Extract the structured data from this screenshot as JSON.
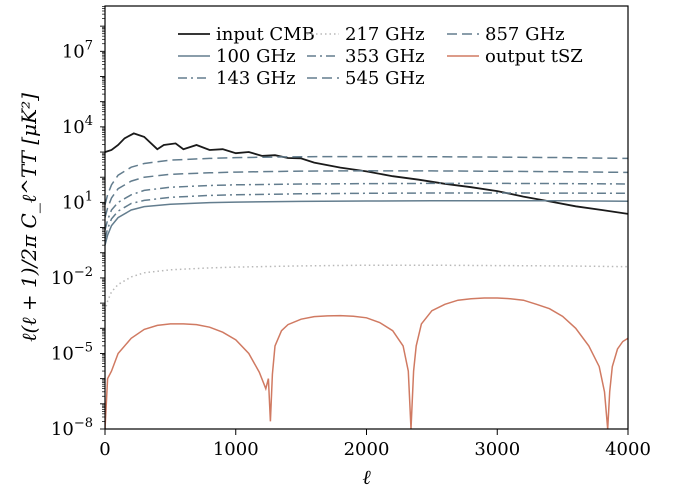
{
  "chart_data": {
    "type": "line",
    "xlabel": "ℓ",
    "ylabel": "ℓ(ℓ + 1)/2π C_ℓ^TT [μK²]",
    "xlim": [
      0,
      4000
    ],
    "ylim_log10": [
      -8,
      8.8
    ],
    "yscale": "log",
    "grid": false,
    "legend_position": "top-right",
    "x_ticks": [
      {
        "value": 0,
        "label": "0"
      },
      {
        "value": 1000,
        "label": "1000"
      },
      {
        "value": 2000,
        "label": "2000"
      },
      {
        "value": 3000,
        "label": "3000"
      },
      {
        "value": 4000,
        "label": "4000"
      }
    ],
    "y_ticks": [
      {
        "exp": -8,
        "base": "10",
        "sup": "−8"
      },
      {
        "exp": -5,
        "base": "10",
        "sup": "−5"
      },
      {
        "exp": -2,
        "base": "10",
        "sup": "−2"
      },
      {
        "exp": 1,
        "base": "10",
        "sup": "1"
      },
      {
        "exp": 4,
        "base": "10",
        "sup": "4"
      },
      {
        "exp": 7,
        "base": "10",
        "sup": "7"
      }
    ],
    "series": [
      {
        "name": "input CMB",
        "color": "#1a1a1a",
        "dash": "solid",
        "x": [
          2,
          50,
          100,
          150,
          220,
          300,
          400,
          450,
          540,
          600,
          700,
          800,
          900,
          1000,
          1100,
          1200,
          1300,
          1400,
          1500,
          1600,
          1800,
          2000,
          2200,
          2400,
          2600,
          2800,
          3000,
          3200,
          3400,
          3600,
          3800,
          4000
        ],
        "y": [
          1000,
          1200,
          1900,
          3500,
          5500,
          4000,
          1300,
          1900,
          2200,
          1300,
          1900,
          1200,
          1300,
          900,
          1000,
          700,
          750,
          580,
          560,
          380,
          240,
          170,
          110,
          80,
          55,
          40,
          28,
          17,
          11,
          7,
          5,
          3.5
        ]
      },
      {
        "name": "100 GHz",
        "color": "#637d8e",
        "dash": "solid",
        "x": [
          0,
          20,
          50,
          100,
          200,
          300,
          500,
          800,
          1000,
          1500,
          2000,
          2500,
          3000,
          3500,
          4000
        ],
        "y": [
          0.2,
          0.5,
          1.2,
          2.5,
          5,
          6.8,
          8.5,
          9.8,
          10.3,
          11,
          11.4,
          11.6,
          11.7,
          11.6,
          11.2
        ]
      },
      {
        "name": "143 GHz",
        "color": "#637d8e",
        "dash": "dashdot",
        "x": [
          0,
          20,
          50,
          100,
          200,
          300,
          500,
          800,
          1000,
          1500,
          2000,
          2500,
          3000,
          3500,
          4000
        ],
        "y": [
          0.35,
          0.9,
          2.2,
          4.5,
          9,
          12,
          16,
          19,
          20,
          22,
          23,
          23.5,
          23.6,
          23.4,
          23
        ]
      },
      {
        "name": "217 GHz",
        "color": "#b8b8b8",
        "dash": "dotted",
        "x": [
          0,
          20,
          50,
          100,
          200,
          300,
          500,
          800,
          1000,
          1500,
          2000,
          2500,
          3000,
          3500,
          4000
        ],
        "y": [
          0.0005,
          0.0012,
          0.0028,
          0.0055,
          0.011,
          0.016,
          0.021,
          0.025,
          0.027,
          0.03,
          0.032,
          0.032,
          0.031,
          0.03,
          0.028
        ]
      },
      {
        "name": "353 GHz",
        "color": "#637d8e",
        "dash": "dashdot",
        "x": [
          0,
          20,
          50,
          100,
          200,
          300,
          500,
          800,
          1000,
          1500,
          2000,
          2500,
          3000,
          3500,
          4000
        ],
        "y": [
          0.8,
          2,
          5,
          10,
          20,
          30,
          40,
          47,
          50,
          54,
          56,
          57,
          57,
          56,
          54
        ]
      },
      {
        "name": "545 GHz",
        "color": "#637d8e",
        "dash": "dashed",
        "x": [
          0,
          20,
          50,
          100,
          200,
          300,
          500,
          800,
          1000,
          1500,
          2000,
          2500,
          3000,
          3500,
          4000
        ],
        "y": [
          2.5,
          6,
          15,
          35,
          70,
          100,
          130,
          150,
          160,
          175,
          180,
          178,
          172,
          165,
          155
        ]
      },
      {
        "name": "857 GHz",
        "color": "#637d8e",
        "dash": "dashed",
        "x": [
          0,
          20,
          50,
          100,
          200,
          300,
          500,
          800,
          1000,
          1500,
          2000,
          2500,
          3000,
          3500,
          4000
        ],
        "y": [
          8,
          20,
          50,
          120,
          250,
          350,
          480,
          560,
          600,
          650,
          660,
          650,
          630,
          600,
          560
        ]
      },
      {
        "name": "output tSZ",
        "color": "#d07a62",
        "dash": "solid",
        "x": [
          0,
          20,
          50,
          100,
          200,
          300,
          400,
          500,
          600,
          700,
          800,
          900,
          1000,
          1100,
          1180,
          1230,
          1250,
          1265,
          1280,
          1300,
          1350,
          1400,
          1500,
          1600,
          1700,
          1800,
          1900,
          2000,
          2100,
          2200,
          2280,
          2320,
          2340,
          2360,
          2380,
          2420,
          2500,
          2600,
          2700,
          2800,
          2900,
          3000,
          3100,
          3200,
          3300,
          3400,
          3500,
          3600,
          3700,
          3780,
          3820,
          3845,
          3860,
          3880,
          3920,
          3960,
          4000
        ],
        "y": [
          1e-08,
          1e-06,
          2e-06,
          1e-05,
          4e-05,
          9e-05,
          0.00013,
          0.00015,
          0.00015,
          0.00014,
          0.00011,
          7e-05,
          3.5e-05,
          1e-05,
          1.8e-06,
          4e-07,
          1e-06,
          2e-08,
          1.5e-06,
          2e-05,
          8e-05,
          0.00014,
          0.00023,
          0.00029,
          0.00031,
          0.00032,
          0.0003,
          0.00026,
          0.00017,
          8e-05,
          2e-05,
          2e-06,
          1e-08,
          2e-06,
          2e-05,
          0.00015,
          0.0005,
          0.0009,
          0.0013,
          0.0015,
          0.0016,
          0.0016,
          0.0015,
          0.0013,
          0.0009,
          0.0006,
          0.0003,
          0.0001,
          2e-05,
          3e-06,
          3e-07,
          1e-08,
          3e-07,
          3e-06,
          1.5e-05,
          3e-05,
          4e-05
        ]
      }
    ]
  }
}
